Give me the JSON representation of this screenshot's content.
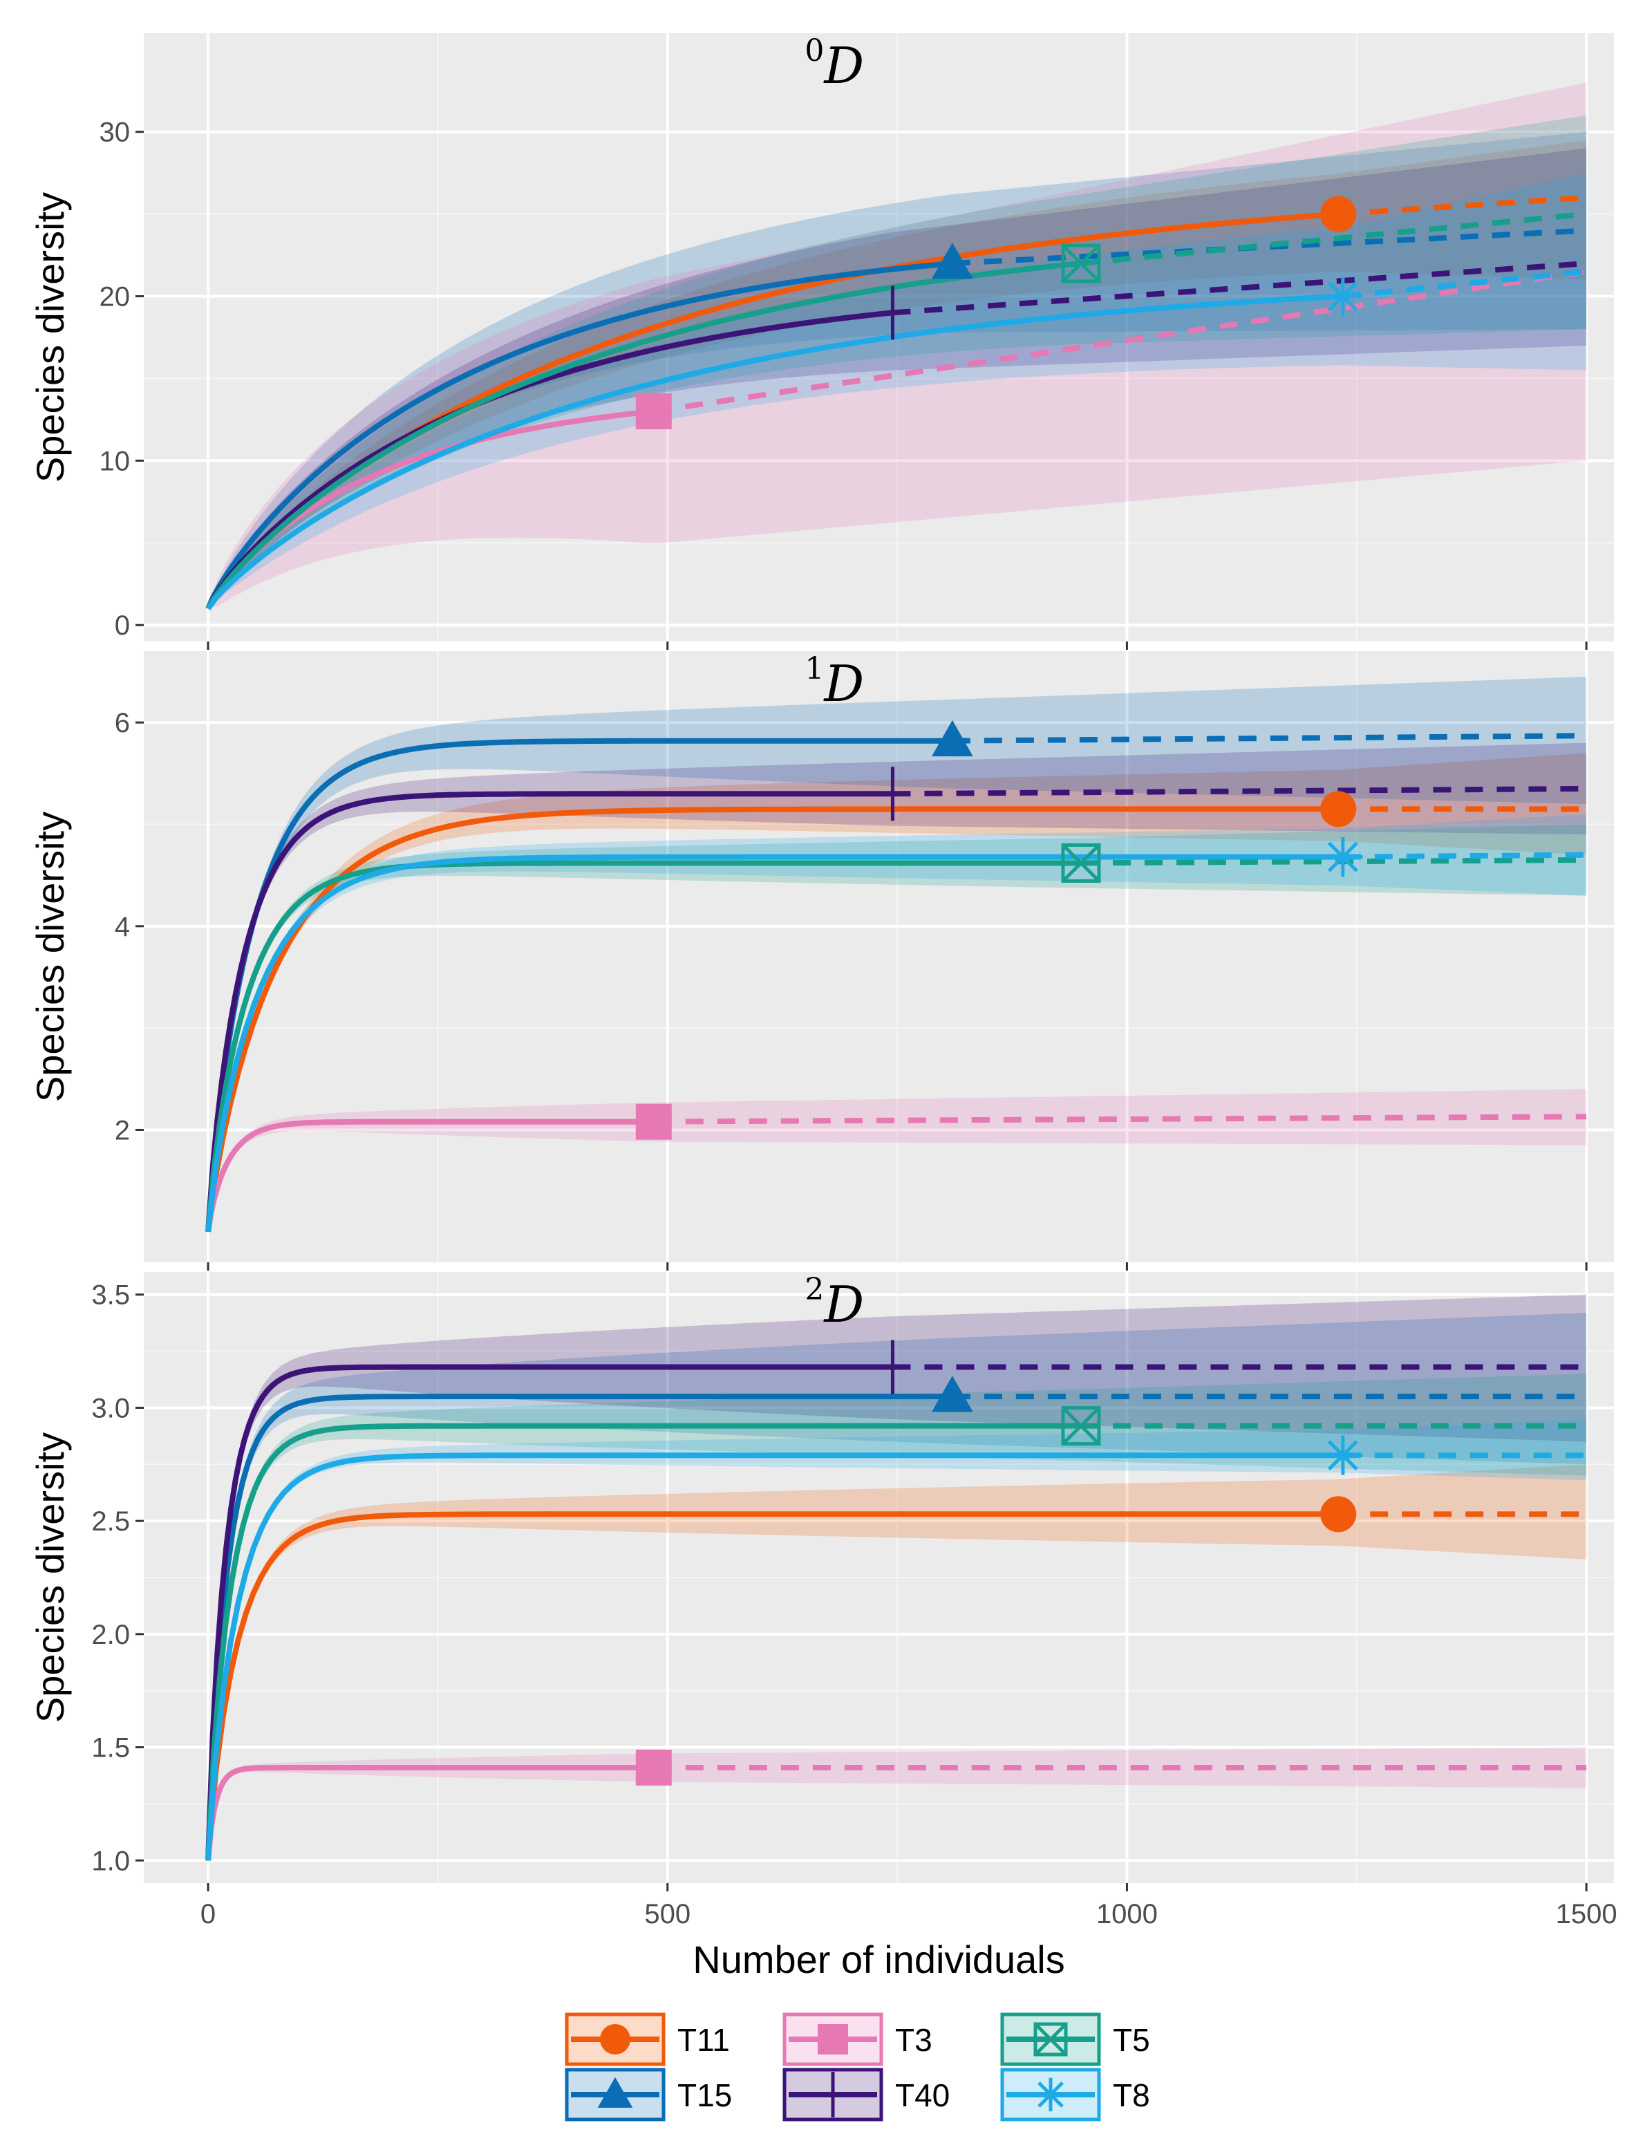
{
  "chart_data": {
    "type": "line",
    "xlabel": "Number of individuals",
    "xlim": [
      -70,
      1530
    ],
    "xticks": [
      0,
      500,
      1000,
      1500
    ],
    "xtick_labels": [
      "0",
      "500",
      "1000",
      "1500"
    ],
    "x_end": 1500,
    "legend_position": "bottom",
    "series": [
      {
        "name": "T11",
        "color": "#F05A0A",
        "marker": "circle",
        "n": 1230
      },
      {
        "name": "T15",
        "color": "#0A6EB4",
        "marker": "triangle",
        "n": 810
      },
      {
        "name": "T3",
        "color": "#E678B4",
        "marker": "square",
        "n": 485
      },
      {
        "name": "T40",
        "color": "#3C1478",
        "marker": "vline",
        "n": 745
      },
      {
        "name": "T5",
        "color": "#16A08C",
        "marker": "boxcross",
        "n": 950
      },
      {
        "name": "T8",
        "color": "#1EAAE6",
        "marker": "asterisk",
        "n": 1235
      }
    ],
    "panels": [
      {
        "title_order": "0",
        "title_letter": "D",
        "ylabel": "Species diversity",
        "ylim": [
          -1,
          36
        ],
        "yticks": [
          0,
          10,
          20,
          30
        ],
        "ytick_labels": [
          "0",
          "10",
          "20",
          "30"
        ],
        "curves": [
          {
            "series": "T11",
            "obs": 25,
            "ext": 26,
            "lo": 21,
            "hi": 29.5,
            "k": 0.42
          },
          {
            "series": "T15",
            "obs": 22,
            "ext": 24,
            "lo": 18,
            "hi": 30,
            "k": 0.4
          },
          {
            "series": "T3",
            "obs": 13,
            "ext": 21.5,
            "lo": 10,
            "hi": 33,
            "k": 0.45
          },
          {
            "series": "T40",
            "obs": 19,
            "ext": 22,
            "lo": 17,
            "hi": 29,
            "k": 0.46
          },
          {
            "series": "T5",
            "obs": 22,
            "ext": 25,
            "lo": 18,
            "hi": 31,
            "k": 0.48
          },
          {
            "series": "T8",
            "obs": 20,
            "ext": 21.5,
            "lo": 15.5,
            "hi": 27.5,
            "k": 0.4
          }
        ]
      },
      {
        "title_order": "1",
        "title_letter": "D",
        "ylabel": "Species diversity",
        "ylim": [
          0.7,
          6.7
        ],
        "yticks": [
          2,
          4,
          6
        ],
        "ytick_labels": [
          "2",
          "4",
          "6"
        ],
        "curves": [
          {
            "series": "T11",
            "obs": 5.15,
            "ext": 5.15,
            "lo": 4.7,
            "hi": 5.7,
            "k": 0.07
          },
          {
            "series": "T15",
            "obs": 5.82,
            "ext": 5.87,
            "lo": 5.2,
            "hi": 6.45,
            "k": 0.07
          },
          {
            "series": "T3",
            "obs": 2.08,
            "ext": 2.13,
            "lo": 1.85,
            "hi": 2.4,
            "k": 0.05
          },
          {
            "series": "T40",
            "obs": 5.3,
            "ext": 5.35,
            "lo": 4.9,
            "hi": 5.8,
            "k": 0.06
          },
          {
            "series": "T5",
            "obs": 4.62,
            "ext": 4.65,
            "lo": 4.3,
            "hi": 5.0,
            "k": 0.05
          },
          {
            "series": "T8",
            "obs": 4.68,
            "ext": 4.7,
            "lo": 4.3,
            "hi": 5.1,
            "k": 0.05
          }
        ]
      },
      {
        "title_order": "2",
        "title_letter": "D",
        "ylabel": "Species diversity",
        "ylim": [
          0.9,
          3.6
        ],
        "yticks": [
          1.0,
          1.5,
          2.0,
          2.5,
          3.0,
          3.5
        ],
        "ytick_labels": [
          "1.0",
          "1.5",
          "2.0",
          "2.5",
          "3.0",
          "3.5"
        ],
        "curves": [
          {
            "series": "T11",
            "obs": 2.53,
            "ext": 2.53,
            "lo": 2.33,
            "hi": 2.75,
            "k": 0.03
          },
          {
            "series": "T15",
            "obs": 3.05,
            "ext": 3.05,
            "lo": 2.75,
            "hi": 3.42,
            "k": 0.03
          },
          {
            "series": "T3",
            "obs": 1.41,
            "ext": 1.41,
            "lo": 1.32,
            "hi": 1.5,
            "k": 0.02
          },
          {
            "series": "T40",
            "obs": 3.18,
            "ext": 3.18,
            "lo": 2.85,
            "hi": 3.5,
            "k": 0.03
          },
          {
            "series": "T5",
            "obs": 2.92,
            "ext": 2.92,
            "lo": 2.7,
            "hi": 3.15,
            "k": 0.03
          },
          {
            "series": "T8",
            "obs": 2.79,
            "ext": 2.79,
            "lo": 2.68,
            "hi": 2.95,
            "k": 0.03
          }
        ]
      }
    ]
  }
}
